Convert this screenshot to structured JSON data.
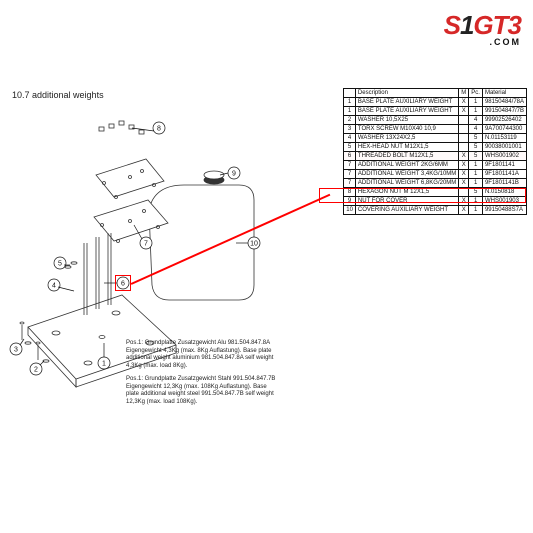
{
  "logo": {
    "s": "S",
    "one": "1",
    "gt3": "GT3",
    "dotcom": ".COM"
  },
  "section": {
    "title": "10.7  additional weights"
  },
  "table": {
    "headers": {
      "desc": "Description",
      "m": "M",
      "pc": "Pc.",
      "mat": "Material"
    },
    "rows": [
      {
        "n": "1",
        "desc": "BASE PLATE AUXILIARY WEIGHT",
        "m": "X",
        "pc": "1",
        "mat": "98150484/78A"
      },
      {
        "n": "1",
        "desc": "BASE PLATE AUXILIARY WEIGHT",
        "m": "X",
        "pc": "1",
        "mat": "991504847/7B"
      },
      {
        "n": "2",
        "desc": "WASHER 10,5X25",
        "m": "",
        "pc": "4",
        "mat": "99902526402"
      },
      {
        "n": "3",
        "desc": "TORX SCREW M10X40 10,9",
        "m": "",
        "pc": "4",
        "mat": "9A700744300"
      },
      {
        "n": "4",
        "desc": "WASHER 13X24X2,5",
        "m": "",
        "pc": "5",
        "mat": "N.01153119"
      },
      {
        "n": "5",
        "desc": "HEX-HEAD NUT M12X1,5",
        "m": "",
        "pc": "5",
        "mat": "90038001001"
      },
      {
        "n": "6",
        "desc": "THREADED BOLT M12X1,5",
        "m": "X",
        "pc": "5",
        "mat": "WHS001902",
        "hl": true
      },
      {
        "n": "7",
        "desc": "ADDITIONAL WEIGHT 2KG/6MM",
        "m": "X",
        "pc": "1",
        "mat": "9F1801141"
      },
      {
        "n": "7",
        "desc": "ADDITIONAL WEIGHT 3,4KG/10MM",
        "m": "X",
        "pc": "1",
        "mat": "9F1801141A"
      },
      {
        "n": "7",
        "desc": "ADDITIONAL WEIGHT 6,8KG/20MM",
        "m": "X",
        "pc": "1",
        "mat": "9F1801141B"
      },
      {
        "n": "8",
        "desc": "HEXAGON NUT M 12X1,5",
        "m": "",
        "pc": "5",
        "mat": "N.0150818"
      },
      {
        "n": "9",
        "desc": "NUT FOR COVER",
        "m": "X",
        "pc": "1",
        "mat": "WHS001903"
      },
      {
        "n": "10",
        "desc": "COVERING AUXILIARY WEIGHT",
        "m": "X",
        "pc": "1",
        "mat": "99150488S7A"
      }
    ]
  },
  "notes": {
    "p1": "Pos.1: Grundplatte Zusatzgewicht Alu 981.504.847.8A Eigengewicht 4,3Kg (max. 8Kg Auflastung).\nBase plate additional weight aluminium 981.504.847.8A self weight 4,3Kg (max. load 8Kg).",
    "p2": "Pos.1: Grundplatte Zusatzgewicht Stahl 991.504.847.7B Eigengewicht 12,3Kg (max. 108Kg Auflastung).\nBase plate additional weight steel 991.504.847.7B self weight 12,3Kg (max. load 108Kg)."
  },
  "callouts": [
    "1",
    "2",
    "3",
    "4",
    "5",
    "6",
    "7",
    "8",
    "9",
    "10"
  ]
}
